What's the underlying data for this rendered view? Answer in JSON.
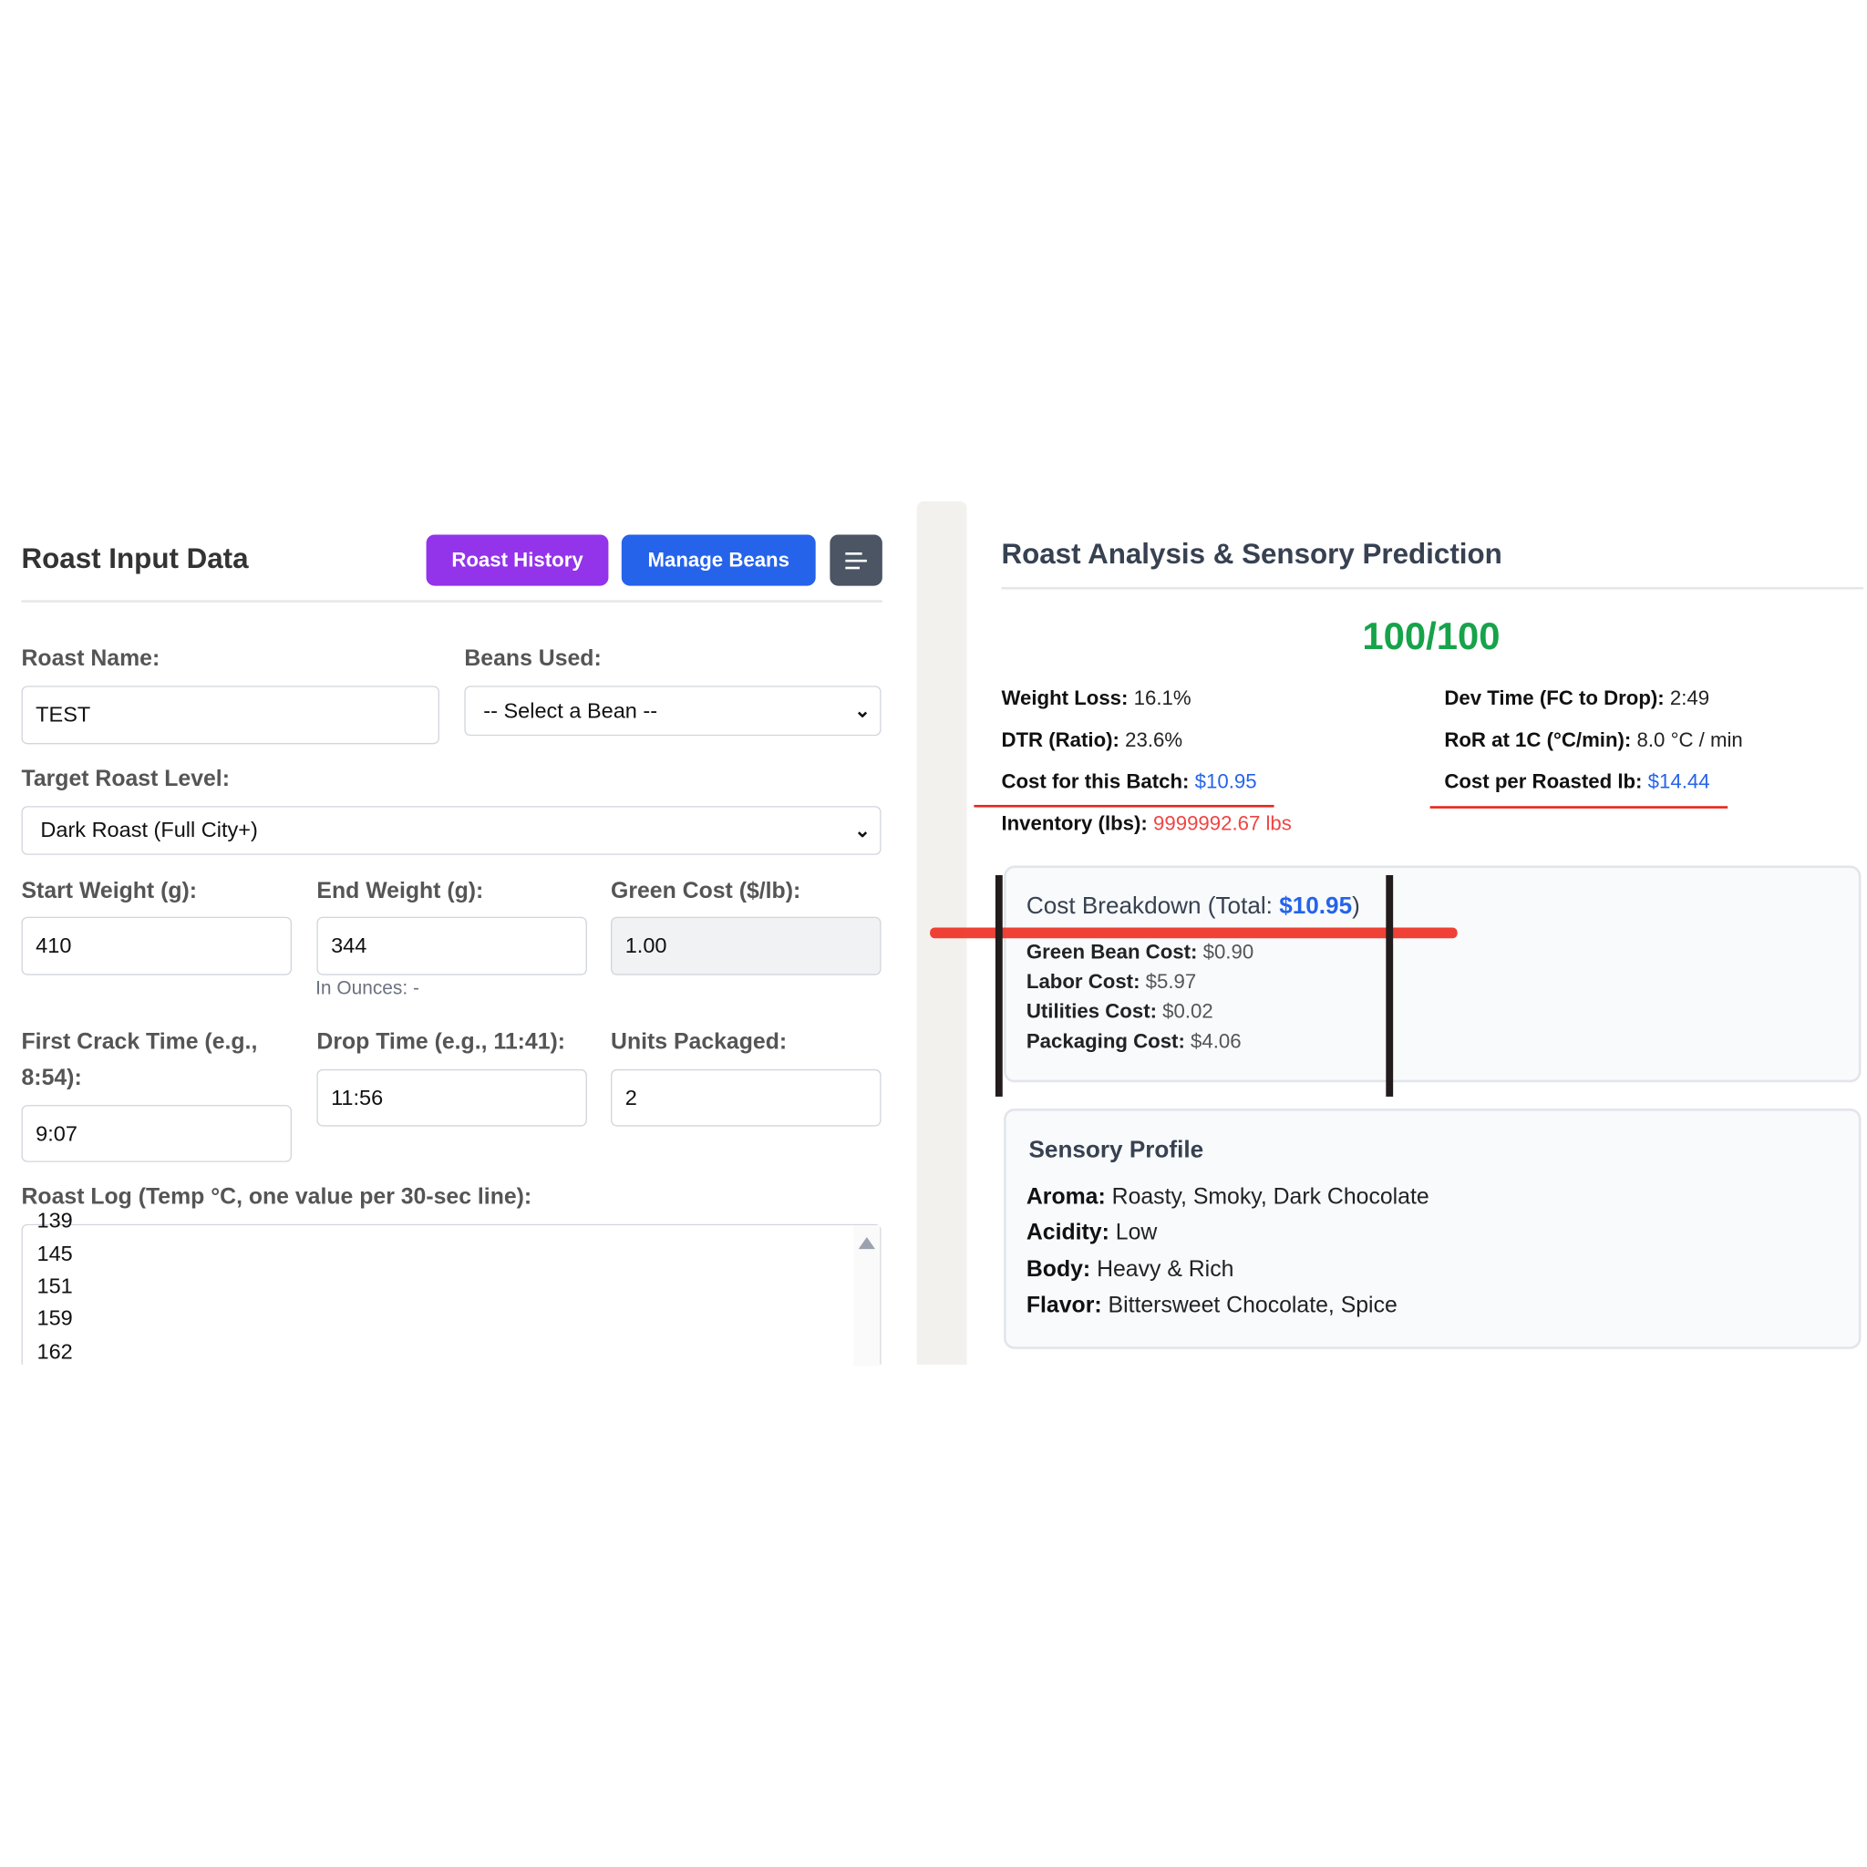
{
  "left": {
    "title": "Roast Input Data",
    "buttons": {
      "roast_history": "Roast History",
      "manage_beans": "Manage Beans",
      "menu_icon": "hamburger-menu-icon"
    },
    "roast_name": {
      "label": "Roast Name:",
      "value": "TEST"
    },
    "beans_used": {
      "label": "Beans Used:",
      "value": "-- Select a Bean --"
    },
    "target_roast_level": {
      "label": "Target Roast Level:",
      "value": "Dark Roast (Full City+)"
    },
    "start_weight": {
      "label": "Start Weight (g):",
      "value": "410"
    },
    "end_weight": {
      "label": "End Weight (g):",
      "value": "344",
      "hint": "In Ounces: -"
    },
    "green_cost": {
      "label": "Green Cost ($/lb):",
      "value": "1.00"
    },
    "first_crack": {
      "label_line1": "First Crack Time (e.g.,",
      "label_line2": "8:54):",
      "value": "9:07"
    },
    "drop_time": {
      "label": "Drop Time (e.g., 11:41):",
      "value": "11:56"
    },
    "units_packaged": {
      "label": "Units Packaged:",
      "value": "2"
    },
    "roast_log": {
      "label": "Roast Log (Temp °C, one value per 30-sec line):",
      "lines": [
        "139",
        "145",
        "151",
        "159",
        "162"
      ]
    }
  },
  "right": {
    "title": "Roast Analysis & Sensory Prediction",
    "score": "100/100",
    "stats": {
      "weight_loss": {
        "label": "Weight Loss:",
        "value": "16.1%"
      },
      "dev_time": {
        "label": "Dev Time (FC to Drop):",
        "value": "2:49"
      },
      "dtr": {
        "label": "DTR (Ratio):",
        "value": "23.6%"
      },
      "ror": {
        "label": "RoR at 1C (°C/min):",
        "value": "8.0 °C / min"
      },
      "batch_cost": {
        "label": "Cost for this Batch:",
        "value": "$10.95"
      },
      "cost_per_lb": {
        "label": "Cost per Roasted lb:",
        "value": "$14.44"
      },
      "inventory": {
        "label": "Inventory (lbs):",
        "value": "9999992.67 lbs"
      }
    },
    "cost_breakdown": {
      "heading": "Cost Breakdown (Total: ",
      "total": "$10.95",
      "close": ")",
      "items": [
        {
          "label": "Green Bean Cost:",
          "value": "$0.90"
        },
        {
          "label": "Labor Cost:",
          "value": "$5.97"
        },
        {
          "label": "Utilities Cost:",
          "value": "$0.02"
        },
        {
          "label": "Packaging Cost:",
          "value": "$4.06"
        }
      ]
    },
    "sensory": {
      "heading": "Sensory Profile",
      "items": [
        {
          "label": "Aroma:",
          "value": "Roasty, Smoky, Dark Chocolate"
        },
        {
          "label": "Acidity:",
          "value": "Low"
        },
        {
          "label": "Body:",
          "value": "Heavy & Rich"
        },
        {
          "label": "Flavor:",
          "value": "Bittersweet Chocolate, Spice"
        }
      ]
    }
  },
  "colors": {
    "purple": "#9333ea",
    "blue": "#2563eb",
    "green": "#16a34a",
    "red": "#ef4444",
    "annotation_red": "#e8251c"
  }
}
